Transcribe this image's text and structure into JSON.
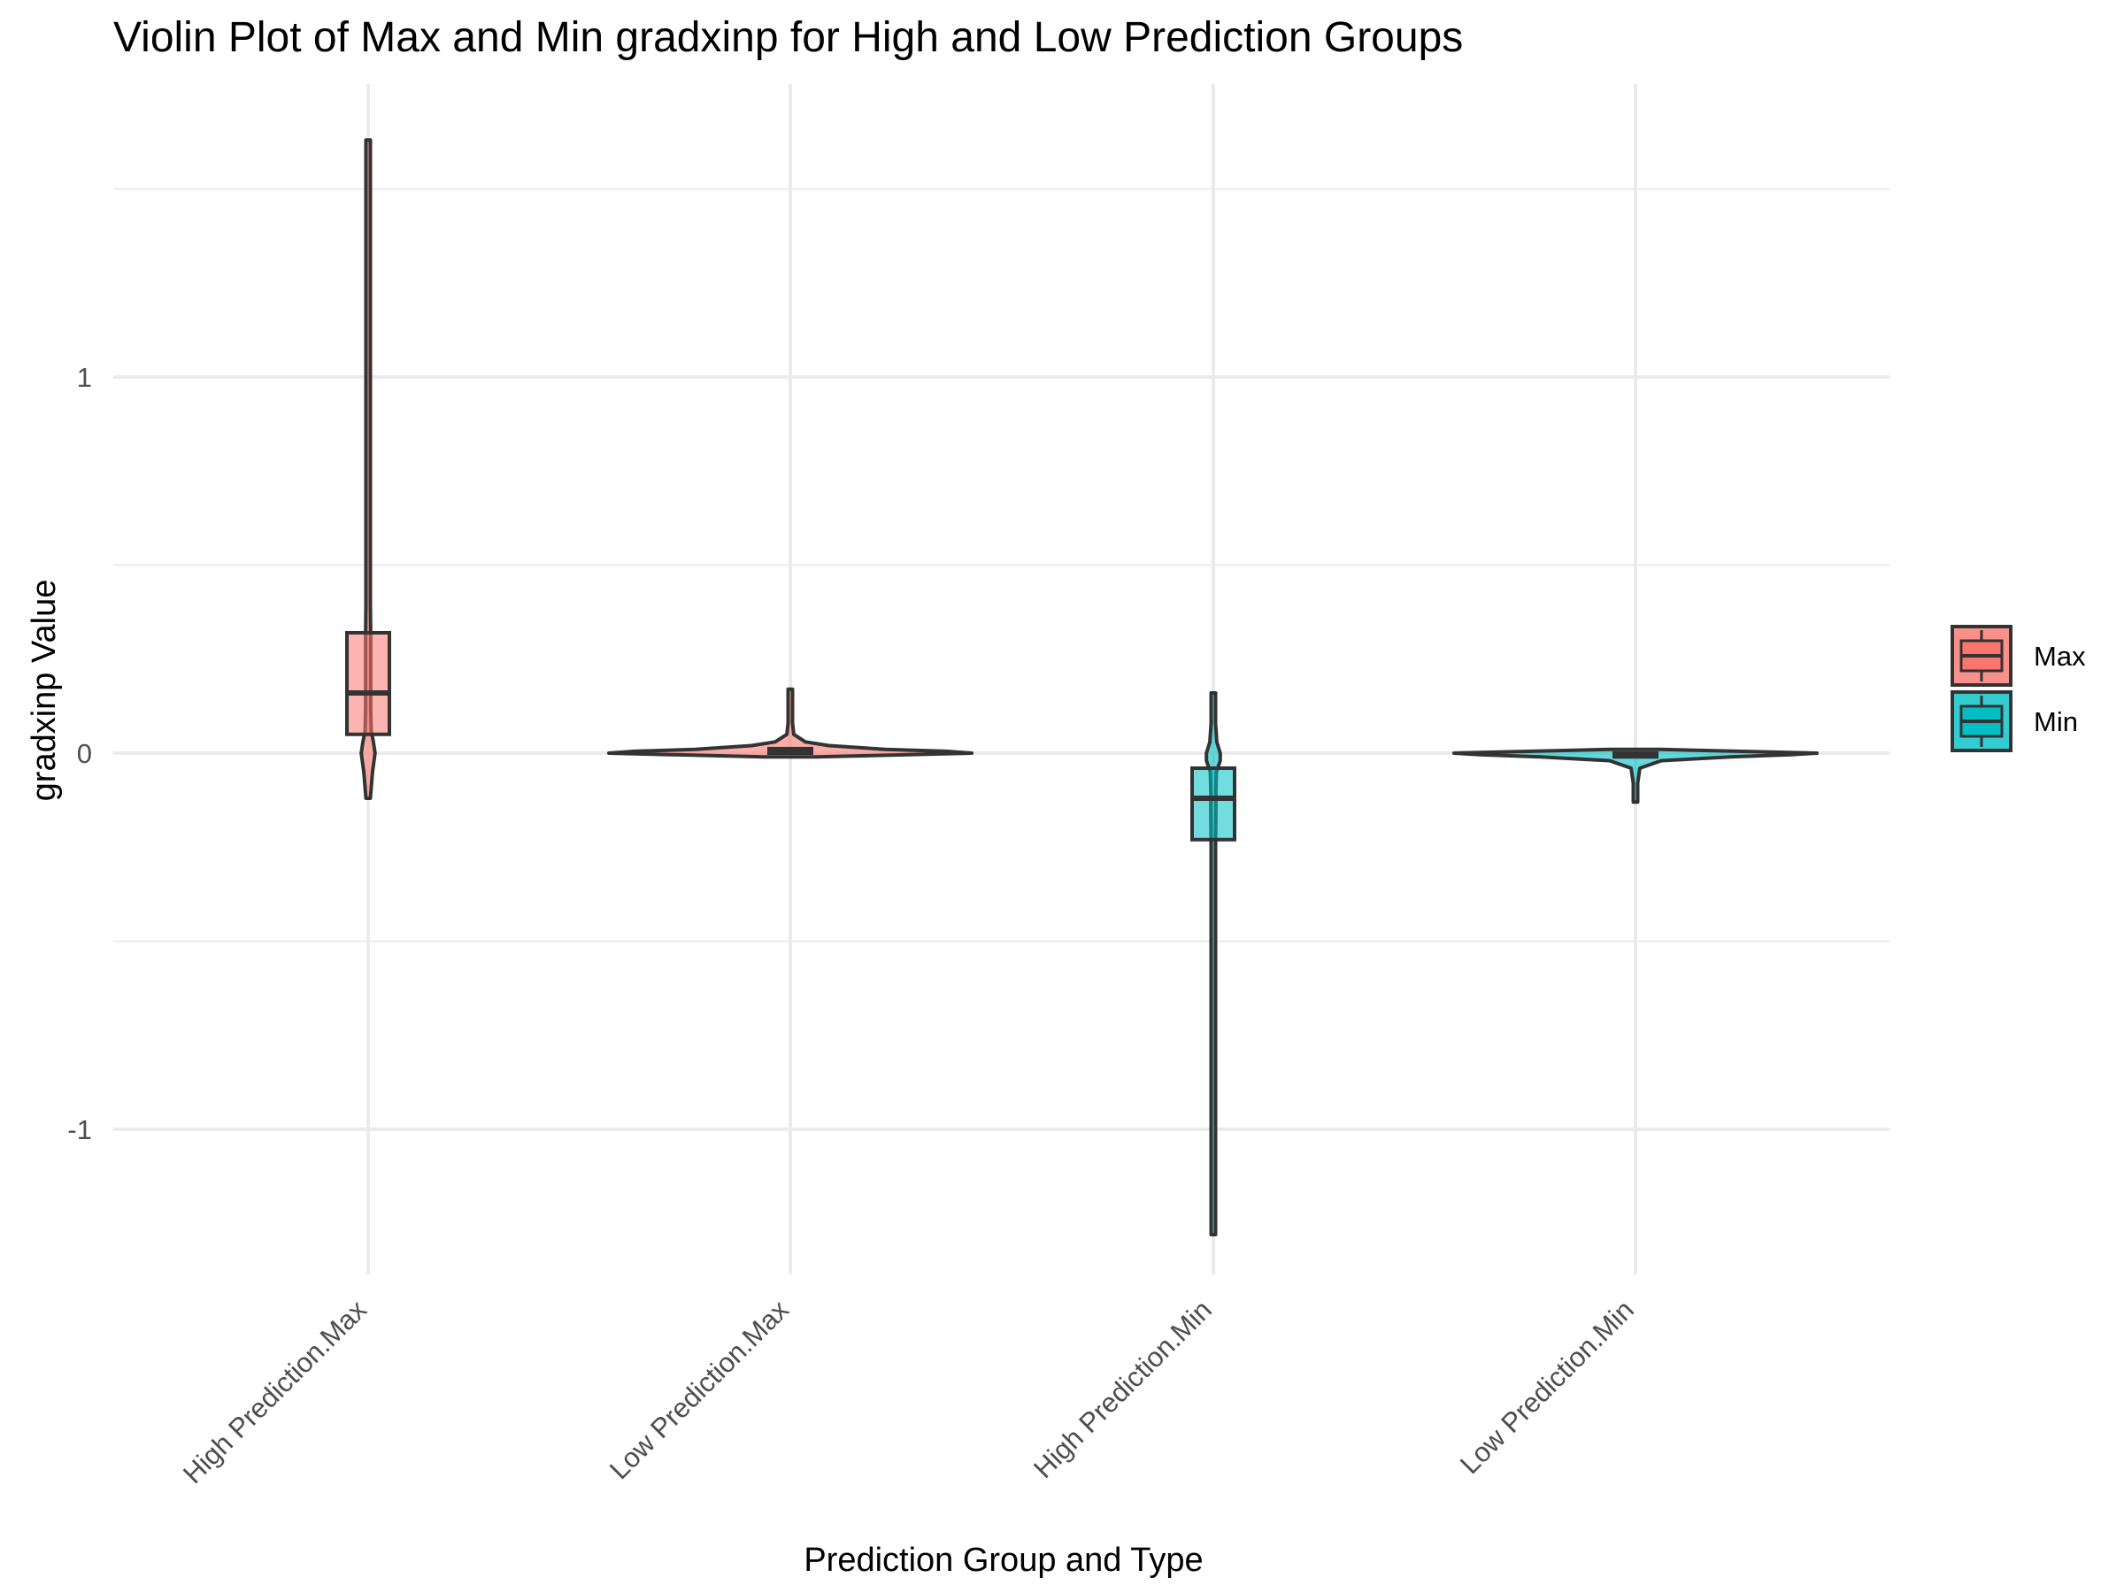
{
  "chart_data": {
    "type": "violin",
    "title": "Violin Plot of Max and Min gradxinp for High and Low Prediction Groups",
    "xlabel": "Prediction Group and Type",
    "ylabel": "gradxinp Value",
    "ylim": [
      -1.4,
      1.7
    ],
    "y_ticks": [
      {
        "value": 1,
        "label": "1"
      },
      {
        "value": 0,
        "label": "0"
      },
      {
        "value": -1,
        "label": "-1"
      }
    ],
    "y_minor_ticks": [
      1.5,
      0.5,
      -0.5
    ],
    "grid": true,
    "legend": {
      "title": "",
      "placement": "right",
      "entries": [
        {
          "label": "Max",
          "color": "#F8766D"
        },
        {
          "label": "Min",
          "color": "#00BFC4"
        }
      ]
    },
    "categories": [
      "High Prediction.Max",
      "Low Prediction.Max",
      "High Prediction.Min",
      "Low Prediction.Min"
    ],
    "groups": [
      {
        "category": "High Prediction.Max",
        "fill": "Max",
        "min": -0.12,
        "max": 1.63,
        "box": {
          "q1": 0.05,
          "median": 0.16,
          "q3": 0.32
        },
        "density": [
          [
            -0.12,
            0.004
          ],
          [
            -0.05,
            0.01
          ],
          [
            0.0,
            0.016
          ],
          [
            0.03,
            0.012
          ],
          [
            0.06,
            0.007
          ],
          [
            0.12,
            0.006
          ],
          [
            0.2,
            0.006
          ],
          [
            0.3,
            0.006
          ],
          [
            0.4,
            0.005
          ],
          [
            0.5,
            0.003
          ],
          [
            0.6,
            0.0025
          ],
          [
            0.8,
            0.002
          ],
          [
            1.0,
            0.0015
          ],
          [
            1.3,
            0.001
          ],
          [
            1.63,
            0.001
          ]
        ]
      },
      {
        "category": "Low Prediction.Max",
        "fill": "Max",
        "min": -0.01,
        "max": 0.17,
        "box": {
          "q1": 0.0,
          "median": 0.005,
          "q3": 0.012
        },
        "density": [
          [
            -0.01,
            0.06
          ],
          [
            0.0,
            0.42
          ],
          [
            0.005,
            0.36
          ],
          [
            0.01,
            0.22
          ],
          [
            0.02,
            0.09
          ],
          [
            0.03,
            0.035
          ],
          [
            0.05,
            0.008
          ],
          [
            0.08,
            0.004
          ],
          [
            0.12,
            0.003
          ],
          [
            0.17,
            0.002
          ]
        ]
      },
      {
        "category": "High Prediction.Min",
        "fill": "Min",
        "min": -1.28,
        "max": 0.16,
        "box": {
          "q1": -0.23,
          "median": -0.12,
          "q3": -0.04
        },
        "density": [
          [
            -1.28,
            0.001
          ],
          [
            -1.0,
            0.0012
          ],
          [
            -0.7,
            0.0015
          ],
          [
            -0.5,
            0.002
          ],
          [
            -0.35,
            0.003
          ],
          [
            -0.25,
            0.005
          ],
          [
            -0.15,
            0.006
          ],
          [
            -0.1,
            0.006
          ],
          [
            -0.05,
            0.007
          ],
          [
            -0.02,
            0.016
          ],
          [
            0.0,
            0.016
          ],
          [
            0.03,
            0.008
          ],
          [
            0.08,
            0.003
          ],
          [
            0.16,
            0.001
          ]
        ]
      },
      {
        "category": "Low Prediction.Min",
        "fill": "Min",
        "min": -0.13,
        "max": 0.01,
        "box": {
          "q1": -0.01,
          "median": -0.004,
          "q3": 0.0
        },
        "density": [
          [
            -0.13,
            0.002
          ],
          [
            -0.08,
            0.004
          ],
          [
            -0.04,
            0.01
          ],
          [
            -0.02,
            0.06
          ],
          [
            -0.01,
            0.22
          ],
          [
            -0.004,
            0.36
          ],
          [
            0.0,
            0.42
          ],
          [
            0.01,
            0.06
          ]
        ]
      }
    ]
  }
}
